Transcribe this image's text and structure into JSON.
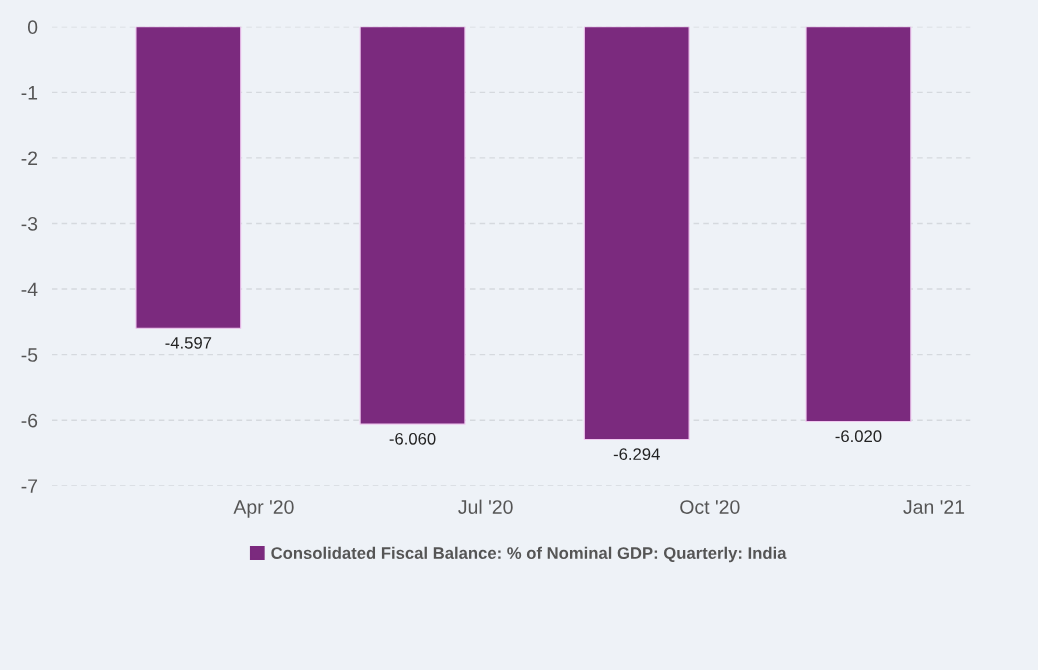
{
  "chart_data": {
    "type": "bar",
    "x": [
      "2020-03",
      "2020-06",
      "2020-09",
      "2020-12"
    ],
    "series": [
      {
        "name": "Consolidated Fiscal Balance: % of Nominal GDP: Quarterly: India",
        "color": "#7b2a7e",
        "values": [
          -4.597,
          -6.06,
          -6.294,
          -6.02
        ],
        "value_labels": [
          "-4.597",
          "-6.060",
          "-6.294",
          "-6.020"
        ]
      }
    ],
    "xlim": [
      "2020-01-05",
      "2021-01-16"
    ],
    "xticks": [
      {
        "value": "2020-04",
        "label": "Apr '20"
      },
      {
        "value": "2020-07",
        "label": "Jul '20"
      },
      {
        "value": "2020-10",
        "label": "Oct '20"
      },
      {
        "value": "2021-01",
        "label": "Jan '21"
      }
    ],
    "ylim": [
      -7,
      0
    ],
    "yticks": [
      0,
      -1,
      -2,
      -3,
      -4,
      -5,
      -6,
      -7
    ],
    "grid": "y",
    "legend": "bottom left"
  }
}
